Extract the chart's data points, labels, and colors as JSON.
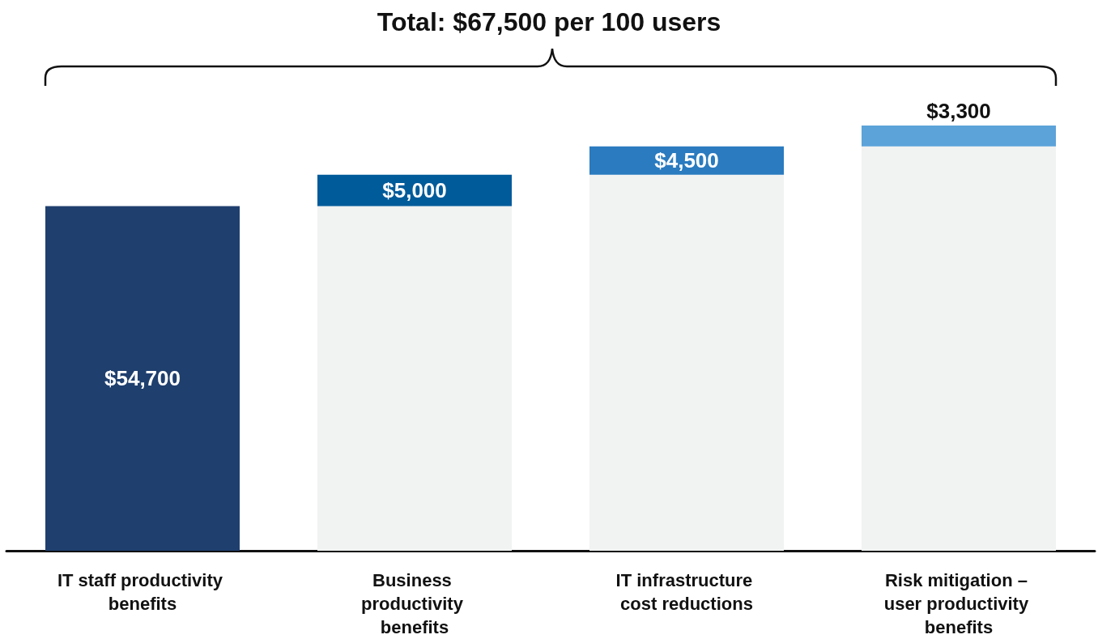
{
  "chart_data": {
    "type": "bar",
    "title": "Total: $67,500 per 100 users",
    "stacked": true,
    "categories": [
      "IT staff productivity benefits",
      "Business productivity benefits",
      "IT infrastructure cost reductions",
      "Risk mitigation – user productivity benefits"
    ],
    "series": [
      {
        "color": "#f1f2f2",
        "values": [
          null,
          54700,
          59700,
          64200
        ]
      },
      {
        "colors": [
          "#1f3f6e",
          "#005b9a",
          "#2a7bbf",
          "#5ba3d9"
        ],
        "values": [
          54700,
          5000,
          4500,
          3300
        ],
        "value_labels": [
          "$54,700",
          "$5,000",
          "$4,500",
          "$3,300"
        ]
      }
    ],
    "grid": false
  }
}
